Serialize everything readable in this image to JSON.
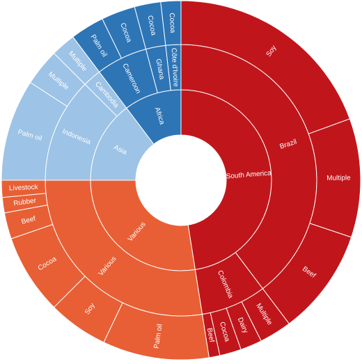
{
  "chart_data": {
    "type": "sunburst",
    "nodes": [
      {
        "name": "South America",
        "color": "#c0161b",
        "children": [
          {
            "name": "Brazil",
            "children": [
              {
                "name": "Soy",
                "value": 70
              },
              {
                "name": "Multiple",
                "value": 38.5
              },
              {
                "name": "Beef",
                "value": 34.5
              }
            ]
          },
          {
            "name": "Colombia",
            "children": [
              {
                "name": "Multiple",
                "value": 10.5
              },
              {
                "name": "Dairy",
                "value": 7
              },
              {
                "name": "Cocoa",
                "value": 7
              },
              {
                "name": "Beef",
                "value": 3.5
              }
            ]
          }
        ]
      },
      {
        "name": "Various",
        "color": "#e85f35",
        "children": [
          {
            "name": "Various",
            "children": [
              {
                "name": "Palm oil",
                "value": 34.5
              },
              {
                "name": "Soy",
                "value": 19.5
              },
              {
                "name": "Cocoa",
                "value": 26
              },
              {
                "name": "Beef",
                "value": 8.5
              },
              {
                "name": "Rubber",
                "value": 5
              },
              {
                "name": "Livestock",
                "value": 5.5
              }
            ]
          }
        ]
      },
      {
        "name": "Asia",
        "color": "#9dc3e6",
        "children": [
          {
            "name": "Indonesia",
            "children": [
              {
                "name": "Palm oil",
                "value": 33
              },
              {
                "name": "Multiple",
                "value": 12
              }
            ]
          },
          {
            "name": "Cambodia",
            "children": [
              {
                "name": "Multiple",
                "value": 8
              }
            ]
          }
        ]
      },
      {
        "name": "Africa",
        "color": "#2e75b6",
        "children": [
          {
            "name": "Cameroon",
            "children": [
              {
                "name": "Palm oil",
                "value": 11
              },
              {
                "name": "Cocoa",
                "value": 11
              }
            ]
          },
          {
            "name": "Ghana",
            "children": [
              {
                "name": "Cocoa",
                "value": 8.5
              }
            ]
          },
          {
            "name": "Côte d'Ivoire",
            "children": [
              {
                "name": "Cocoa",
                "value": 6.5
              }
            ]
          }
        ]
      }
    ]
  }
}
